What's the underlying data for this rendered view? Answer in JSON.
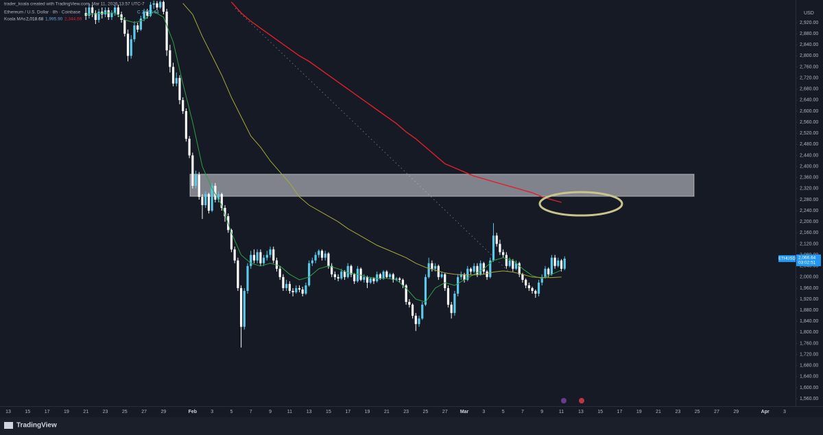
{
  "header": {
    "credit": "trader_koala created with TradingView.com, Mar 11, 2026 13:57 UTC-7",
    "symbol": "Ethereum / U.S. Dollar · 8h · Coinbase",
    "last": "C 2,066.64",
    "indicator": "Koala MAs",
    "indicator_values": [
      "2,018.68",
      "1,995.90",
      "2,344.69"
    ]
  },
  "currency": "USD",
  "price_label": {
    "symbol": "ETHUSD",
    "price": "2,066.64",
    "countdown": "03:02:51"
  },
  "brand": "TradingView",
  "chart_data": {
    "type": "candlestick",
    "up_color": "#5ec8e8",
    "down_color": "#ffffff",
    "ylim": [
      1533,
      3002
    ],
    "yticks": [
      {
        "value": 2920,
        "label": "2,920.00"
      },
      {
        "value": 2880,
        "label": "2,880.00"
      },
      {
        "value": 2840,
        "label": "2,840.00"
      },
      {
        "value": 2800,
        "label": "2,800.00"
      },
      {
        "value": 2760,
        "label": "2,760.00"
      },
      {
        "value": 2720,
        "label": "2,720.00"
      },
      {
        "value": 2680,
        "label": "2,680.00"
      },
      {
        "value": 2640,
        "label": "2,640.00"
      },
      {
        "value": 2600,
        "label": "2,600.00"
      },
      {
        "value": 2560,
        "label": "2,560.00"
      },
      {
        "value": 2520,
        "label": "2,520.00"
      },
      {
        "value": 2480,
        "label": "2,480.00"
      },
      {
        "value": 2440,
        "label": "2,440.00"
      },
      {
        "value": 2400,
        "label": "2,400.00"
      },
      {
        "value": 2360,
        "label": "2,360.00"
      },
      {
        "value": 2320,
        "label": "2,320.00"
      },
      {
        "value": 2280,
        "label": "2,280.00"
      },
      {
        "value": 2240,
        "label": "2,240.00"
      },
      {
        "value": 2200,
        "label": "2,200.00"
      },
      {
        "value": 2160,
        "label": "2,160.00"
      },
      {
        "value": 2120,
        "label": "2,120.00"
      },
      {
        "value": 2080,
        "label": "2,080.00"
      },
      {
        "value": 2040,
        "label": "2,040.00"
      },
      {
        "value": 2000,
        "label": "2,000.00"
      },
      {
        "value": 1960,
        "label": "1,960.00"
      },
      {
        "value": 1920,
        "label": "1,920.00"
      },
      {
        "value": 1880,
        "label": "1,880.00"
      },
      {
        "value": 1840,
        "label": "1,840.00"
      },
      {
        "value": 1800,
        "label": "1,800.00"
      },
      {
        "value": 1760,
        "label": "1,760.00"
      },
      {
        "value": 1720,
        "label": "1,720.00"
      },
      {
        "value": 1680,
        "label": "1,680.00"
      },
      {
        "value": 1640,
        "label": "1,640.00"
      },
      {
        "value": 1600,
        "label": "1,600.00"
      },
      {
        "value": 1560,
        "label": "1,560.00"
      }
    ],
    "grid": false,
    "x_tick_labels": [
      "13",
      "15",
      "17",
      "19",
      "21",
      "23",
      "25",
      "27",
      "29",
      "Feb",
      "3",
      "5",
      "7",
      "9",
      "11",
      "13",
      "15",
      "17",
      "19",
      "21",
      "23",
      "25",
      "27",
      "Mar",
      "3",
      "5",
      "7",
      "9",
      "11",
      "13",
      "15",
      "17",
      "19",
      "21",
      "23",
      "25",
      "27",
      "29",
      "Apr",
      "3"
    ],
    "open": [
      2955,
      2945,
      2975,
      2955,
      2930,
      2960,
      2950,
      2965,
      2940,
      2955,
      2975,
      2950,
      2930,
      2880,
      2800,
      2860,
      2910,
      2895,
      2935,
      2960,
      2945,
      2985,
      2990,
      2975,
      2995,
      2960,
      2820,
      2760,
      2700,
      2720,
      2640,
      2600,
      2500,
      2440,
      2330,
      2370,
      2290,
      2260,
      2300,
      2240,
      2330,
      2280,
      2300,
      2250,
      2220,
      2170,
      2100,
      2060,
      1960,
      1820,
      1950,
      2040,
      2080,
      2060,
      2090,
      2050,
      2070,
      2080,
      2100,
      2060,
      2030,
      2000,
      1960,
      1975,
      1950,
      1945,
      1960,
      1955,
      1940,
      1970,
      2050,
      2060,
      2080,
      2095,
      2070,
      2085,
      2040,
      2010,
      2000,
      1995,
      2020,
      2000,
      2040,
      2010,
      1985,
      2030,
      1990,
      2000,
      1980,
      1995,
      1985,
      2010,
      1995,
      2020,
      2000,
      2010,
      1990,
      1995,
      1990,
      1970,
      1910,
      1900,
      1860,
      1830,
      1850,
      1900,
      2000,
      2050,
      2030,
      2040,
      2000,
      2010,
      1960,
      1900,
      1870,
      1940,
      2000,
      2010,
      1990,
      2030,
      2020,
      2040,
      2010,
      2050,
      2020,
      2000,
      2060,
      2150,
      2120,
      2090,
      2080,
      2040,
      2060,
      2030,
      2050,
      2010,
      1990,
      1970,
      1960,
      1950,
      1940,
      1980,
      2000,
      2030,
      2010,
      2070,
      2040,
      2060,
      2030
    ],
    "high": [
      2975,
      2990,
      2985,
      2965,
      2970,
      2975,
      2975,
      2975,
      2965,
      2985,
      2985,
      2960,
      2940,
      2895,
      2875,
      2925,
      2920,
      2945,
      2970,
      2970,
      2995,
      3000,
      2998,
      3000,
      3000,
      2970,
      2840,
      2775,
      2740,
      2730,
      2650,
      2610,
      2510,
      2450,
      2385,
      2380,
      2300,
      2310,
      2305,
      2340,
      2340,
      2310,
      2305,
      2260,
      2230,
      2175,
      2110,
      2070,
      1970,
      1960,
      2050,
      2095,
      2100,
      2100,
      2100,
      2080,
      2095,
      2110,
      2110,
      2070,
      2040,
      2010,
      1990,
      1985,
      1960,
      1970,
      1970,
      1965,
      1980,
      2060,
      2070,
      2090,
      2100,
      2100,
      2095,
      2090,
      2050,
      2020,
      2010,
      2030,
      2025,
      2050,
      2045,
      2015,
      2040,
      2035,
      2010,
      2005,
      2000,
      2000,
      2020,
      2015,
      2025,
      2025,
      2015,
      2015,
      2000,
      2000,
      1995,
      1975,
      1920,
      1905,
      1870,
      1860,
      1910,
      2010,
      2070,
      2060,
      2050,
      2045,
      2020,
      2015,
      1970,
      1910,
      1950,
      2010,
      2020,
      2015,
      2040,
      2035,
      2050,
      2050,
      2060,
      2055,
      2025,
      2070,
      2195,
      2160,
      2135,
      2100,
      2090,
      2070,
      2065,
      2060,
      2055,
      2015,
      1995,
      1980,
      1965,
      1955,
      1990,
      2010,
      2040,
      2035,
      2080,
      2080,
      2070,
      2065,
      2075
    ],
    "low": [
      2930,
      2935,
      2940,
      2915,
      2920,
      2935,
      2940,
      2930,
      2930,
      2945,
      2940,
      2920,
      2870,
      2780,
      2790,
      2850,
      2885,
      2890,
      2925,
      2935,
      2940,
      2970,
      2965,
      2970,
      2950,
      2800,
      2740,
      2690,
      2690,
      2625,
      2590,
      2490,
      2430,
      2320,
      2320,
      2280,
      2210,
      2250,
      2230,
      2235,
      2270,
      2270,
      2240,
      2200,
      2160,
      2090,
      2050,
      1950,
      1745,
      1810,
      1940,
      2030,
      2050,
      2050,
      2040,
      2040,
      2060,
      2070,
      2050,
      2020,
      1990,
      1950,
      1950,
      1940,
      1930,
      1940,
      1945,
      1930,
      1935,
      1965,
      2040,
      2050,
      2070,
      2060,
      2060,
      2030,
      2000,
      1990,
      1985,
      1990,
      1990,
      1995,
      2000,
      1975,
      1980,
      1985,
      1980,
      1960,
      1975,
      1975,
      1980,
      1990,
      1990,
      1995,
      1995,
      1980,
      1985,
      1980,
      1960,
      1900,
      1890,
      1850,
      1805,
      1820,
      1845,
      1895,
      1995,
      2020,
      2020,
      1990,
      1995,
      1950,
      1890,
      1850,
      1860,
      1930,
      1990,
      1980,
      1985,
      2010,
      2015,
      2000,
      2005,
      2010,
      1990,
      1995,
      2055,
      2110,
      2080,
      2070,
      2030,
      2035,
      2020,
      2025,
      2000,
      1980,
      1960,
      1950,
      1940,
      1925,
      1930,
      1970,
      1995,
      2000,
      2005,
      2030,
      2035,
      2020,
      2025
    ],
    "close": [
      2945,
      2975,
      2955,
      2930,
      2960,
      2950,
      2965,
      2940,
      2955,
      2975,
      2950,
      2930,
      2880,
      2800,
      2860,
      2910,
      2895,
      2935,
      2960,
      2945,
      2985,
      2990,
      2975,
      2995,
      2960,
      2820,
      2760,
      2700,
      2720,
      2640,
      2600,
      2500,
      2440,
      2330,
      2370,
      2290,
      2260,
      2300,
      2240,
      2330,
      2280,
      2300,
      2250,
      2220,
      2170,
      2100,
      2060,
      1960,
      1820,
      1950,
      2040,
      2080,
      2060,
      2090,
      2050,
      2070,
      2080,
      2100,
      2060,
      2030,
      2000,
      1960,
      1975,
      1950,
      1945,
      1960,
      1955,
      1940,
      1970,
      2050,
      2060,
      2080,
      2095,
      2070,
      2085,
      2040,
      2010,
      2000,
      1995,
      2020,
      2000,
      2040,
      2010,
      1985,
      2030,
      1990,
      2000,
      1980,
      1995,
      1985,
      2010,
      1995,
      2020,
      2000,
      2010,
      1990,
      1995,
      1990,
      1970,
      1910,
      1900,
      1860,
      1830,
      1850,
      1900,
      2000,
      2050,
      2030,
      2040,
      2000,
      2010,
      1960,
      1900,
      1870,
      1940,
      2000,
      2010,
      1990,
      2030,
      2020,
      2040,
      2010,
      2050,
      2020,
      2000,
      2060,
      2150,
      2120,
      2090,
      2080,
      2040,
      2060,
      2030,
      2050,
      2010,
      1990,
      1970,
      1960,
      1950,
      1940,
      1980,
      2000,
      2030,
      2010,
      2070,
      2040,
      2060,
      2030,
      2066.64
    ],
    "moving_averages": [
      {
        "color": "#2ea043",
        "values": [
          2950,
          2952,
          2955,
          2955,
          2930,
          2920,
          2930,
          2960,
          2940,
          2850,
          2700,
          2560,
          2400,
          2320,
          2260,
          2160,
          2080,
          2050,
          2040,
          2050,
          2040,
          2010,
          1990,
          2000,
          2030,
          2040,
          2030,
          2015,
          2010,
          2000,
          1995,
          1995,
          1990,
          1960,
          1920,
          1910,
          1960,
          1980,
          1970,
          1990,
          2010,
          2030,
          2060,
          2070,
          2060,
          2030,
          2005,
          1995,
          2010,
          2025
        ]
      },
      {
        "color": "#a8a83a",
        "values": [
          null,
          null,
          null,
          null,
          null,
          null,
          null,
          null,
          null,
          null,
          2990,
          2950,
          2870,
          2800,
          2730,
          2650,
          2580,
          2510,
          2470,
          2420,
          2380,
          2340,
          2290,
          2260,
          2240,
          2220,
          2200,
          2175,
          2155,
          2135,
          2115,
          2100,
          2085,
          2070,
          2050,
          2035,
          2025,
          2015,
          2010,
          2008,
          2008,
          2010,
          2018,
          2022,
          2018,
          2010,
          2000,
          1998,
          1998,
          2000
        ]
      },
      {
        "color": "#e0202c",
        "values": [
          null,
          null,
          null,
          null,
          null,
          null,
          null,
          null,
          null,
          null,
          null,
          null,
          null,
          null,
          null,
          2995,
          2955,
          2925,
          2900,
          2875,
          2850,
          2825,
          2800,
          2780,
          2755,
          2730,
          2705,
          2680,
          2655,
          2630,
          2605,
          2580,
          2555,
          2525,
          2500,
          2470,
          2440,
          2410,
          2395,
          2380,
          2365,
          2355,
          2345,
          2335,
          2325,
          2315,
          2305,
          2290,
          2280,
          2270
        ]
      }
    ],
    "zone": {
      "low": 2292,
      "high": 2372,
      "color": "#d9dbe0"
    }
  }
}
